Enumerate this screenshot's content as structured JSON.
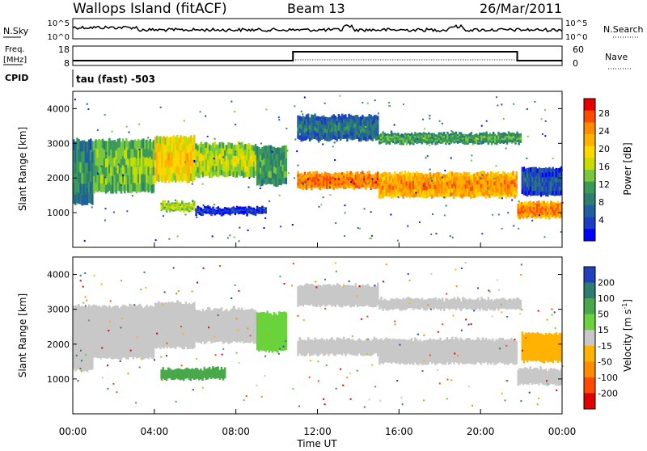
{
  "header": {
    "station": "Wallops Island (fitACF)",
    "beam": "Beam 13",
    "date": "26/Mar/2011"
  },
  "noise_panel": {
    "left_label": "N.Sky",
    "right_label": "N.Search",
    "ticks": [
      "10^5",
      "10^0"
    ],
    "right_ticks": [
      "10^5",
      "10^0"
    ],
    "legend_style": "dotted"
  },
  "freq_panel": {
    "left_label_1": "Freq.",
    "left_label_2": "[MHz]",
    "left_ticks": [
      "18",
      "8"
    ],
    "right_label": "Nave",
    "right_ticks": [
      "60",
      "0"
    ],
    "legend_style": "dotted"
  },
  "cpid_panel": {
    "label": "CPID",
    "text": "tau (fast) -503"
  },
  "power_colorbar": {
    "title": "Power [dB]",
    "ticks": [
      "28",
      "24",
      "20",
      "16",
      "12",
      "8",
      "4"
    ],
    "colors": [
      "#e60000",
      "#ff4b00",
      "#ff8c00",
      "#ffb300",
      "#ffd700",
      "#c8dc00",
      "#78c83c",
      "#3a9a5a",
      "#2e7d6e",
      "#2060a0",
      "#1c3cc8",
      "#0000ff"
    ]
  },
  "velocity_colorbar": {
    "title": "Velocity [m s",
    "title_exp": "-1",
    "title_close": "]",
    "ticks": [
      "200",
      "100",
      "50",
      "15",
      "-15",
      "-50",
      "-100",
      "-200"
    ],
    "colors": [
      "#2040c0",
      "#2e7d6e",
      "#49a84a",
      "#6ad23a",
      "#c8c8c8",
      "#ffb300",
      "#ff8c00",
      "#ff4b00",
      "#e00000"
    ]
  },
  "ground_color": "#c8c8c8",
  "chart_data": [
    {
      "type": "heatmap",
      "name": "power",
      "ylabel": "Slant Range [km]",
      "ylim": [
        0,
        4500
      ],
      "y_ticks": [
        1000,
        2000,
        3000,
        4000
      ],
      "x_ticks": [
        "00:00",
        "04:00",
        "08:00",
        "12:00",
        "16:00",
        "20:00",
        "00:00"
      ],
      "xlim_hours": [
        0,
        24
      ],
      "bands": [
        {
          "t0": 0.0,
          "t1": 1.0,
          "low": 1250,
          "high": 3100,
          "level": 12
        },
        {
          "t0": 1.0,
          "t1": 4.0,
          "low": 1600,
          "high": 3100,
          "level": 16
        },
        {
          "t0": 4.0,
          "t1": 6.0,
          "low": 1900,
          "high": 3200,
          "level": 22
        },
        {
          "t0": 6.0,
          "t1": 9.0,
          "low": 2050,
          "high": 3000,
          "level": 18
        },
        {
          "t0": 9.0,
          "t1": 10.5,
          "low": 1800,
          "high": 2900,
          "level": 14
        },
        {
          "t0": 11.0,
          "t1": 15.0,
          "low": 1700,
          "high": 2150,
          "level": 27
        },
        {
          "t0": 15.0,
          "t1": 21.8,
          "low": 1450,
          "high": 2150,
          "level": 25
        },
        {
          "t0": 21.8,
          "t1": 24.0,
          "low": 850,
          "high": 1300,
          "level": 26
        },
        {
          "t0": 4.3,
          "t1": 6.0,
          "low": 1050,
          "high": 1300,
          "level": 18
        },
        {
          "t0": 6.0,
          "t1": 9.5,
          "low": 950,
          "high": 1150,
          "level": 6
        },
        {
          "t0": 11.0,
          "t1": 15.0,
          "low": 3100,
          "high": 3800,
          "level": 10
        },
        {
          "t0": 15.0,
          "t1": 22.0,
          "low": 3000,
          "high": 3300,
          "level": 14
        },
        {
          "t0": 22.0,
          "t1": 24.0,
          "low": 1500,
          "high": 2300,
          "level": 8
        }
      ]
    },
    {
      "type": "heatmap",
      "name": "velocity",
      "ylabel": "Slant Range [km]",
      "xlabel": "Time UT",
      "ylim": [
        0,
        4500
      ],
      "y_ticks": [
        1000,
        2000,
        3000,
        4000
      ],
      "x_ticks": [
        "00:00",
        "04:00",
        "08:00",
        "12:00",
        "16:00",
        "20:00",
        "00:00"
      ],
      "xlim_hours": [
        0,
        24
      ],
      "bands": [
        {
          "t0": 0.0,
          "t1": 1.0,
          "low": 1250,
          "high": 3100,
          "level": 0
        },
        {
          "t0": 1.0,
          "t1": 4.0,
          "low": 1600,
          "high": 3100,
          "level": 0
        },
        {
          "t0": 4.0,
          "t1": 6.0,
          "low": 1900,
          "high": 3200,
          "level": 0
        },
        {
          "t0": 6.0,
          "t1": 9.0,
          "low": 2050,
          "high": 3000,
          "level": 0
        },
        {
          "t0": 9.0,
          "t1": 10.5,
          "low": 1800,
          "high": 2900,
          "level": 20
        },
        {
          "t0": 11.0,
          "t1": 15.0,
          "low": 1700,
          "high": 2150,
          "level": 0
        },
        {
          "t0": 15.0,
          "t1": 21.8,
          "low": 1450,
          "high": 2150,
          "level": 0
        },
        {
          "t0": 21.8,
          "t1": 24.0,
          "low": 850,
          "high": 1300,
          "level": 0
        },
        {
          "t0": 4.3,
          "t1": 7.5,
          "low": 1000,
          "high": 1300,
          "level": 35
        },
        {
          "t0": 11.0,
          "t1": 15.0,
          "low": 3100,
          "high": 3700,
          "level": 0
        },
        {
          "t0": 15.0,
          "t1": 22.0,
          "low": 3000,
          "high": 3300,
          "level": 0
        },
        {
          "t0": 22.0,
          "t1": 24.0,
          "low": 1500,
          "high": 2300,
          "level": -40
        }
      ]
    }
  ]
}
